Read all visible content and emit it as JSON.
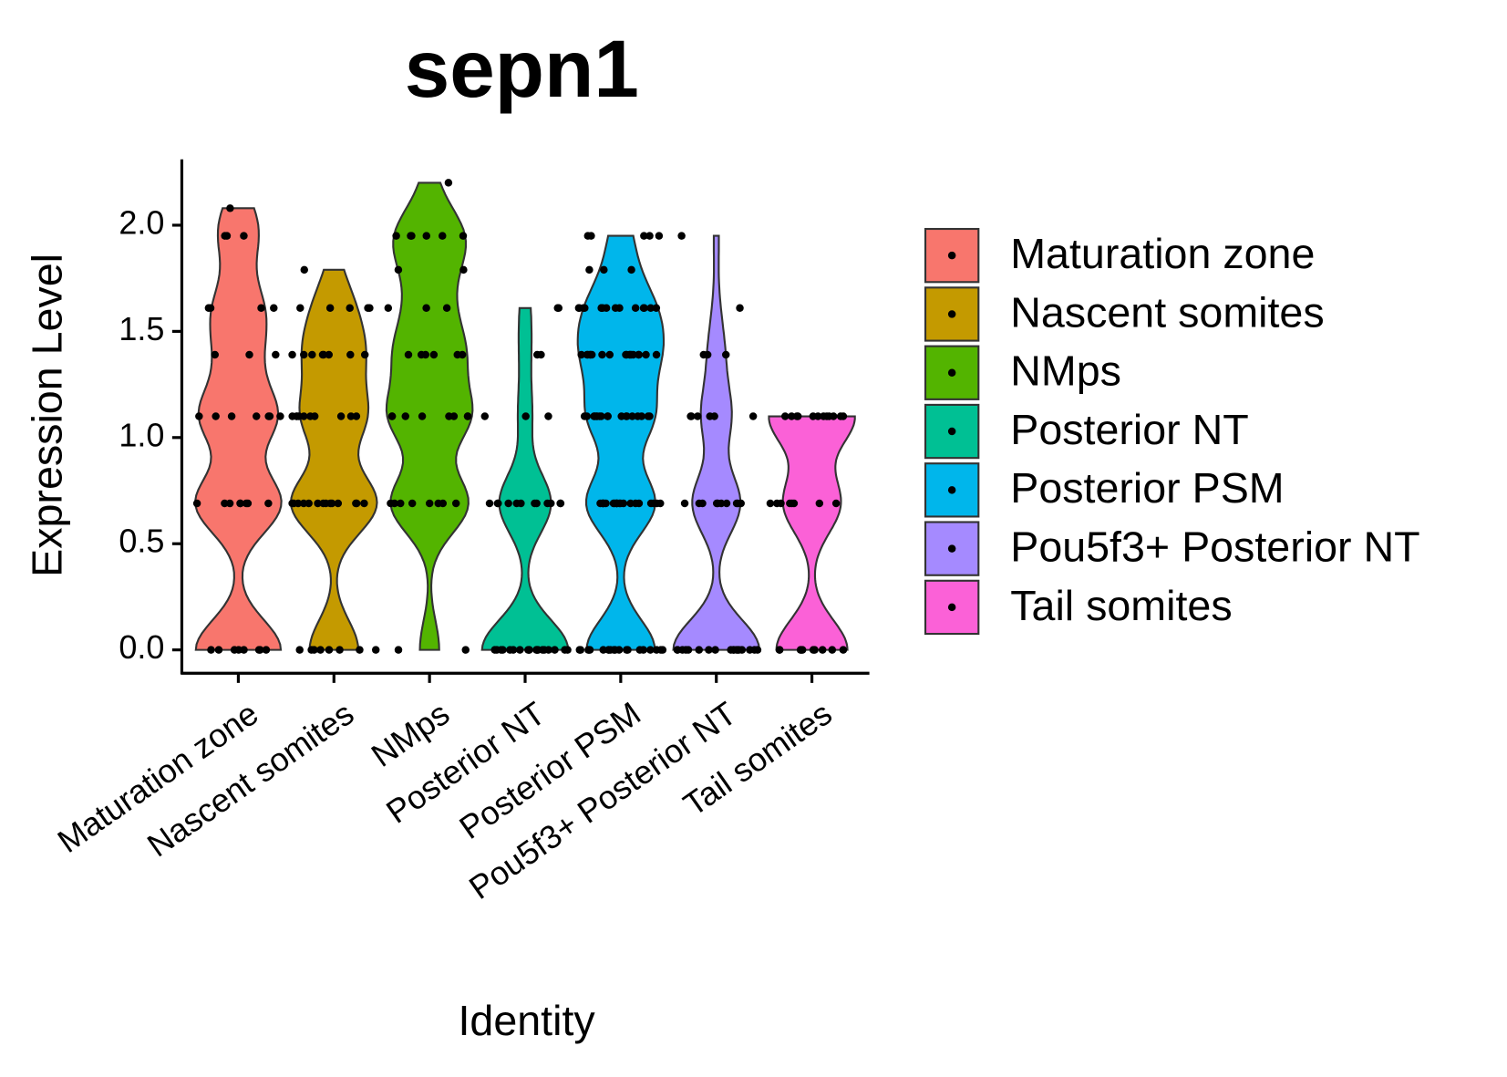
{
  "chart_data": {
    "type": "violin",
    "title": "sepn1",
    "x_label": "Identity",
    "y_label": "Expression Level",
    "categories": [
      "Maturation zone",
      "Nascent somites",
      "NMps",
      "Posterior NT",
      "Posterior PSM",
      "Pou5f3+ Posterior NT",
      "Tail somites"
    ],
    "ylim": [
      -0.11,
      2.31
    ],
    "yticks": [
      {
        "value": 0,
        "label": "0.0"
      },
      0.5,
      {
        "value": 1,
        "label": "1.0"
      },
      1.5,
      {
        "value": 2,
        "label": "2.0"
      }
    ],
    "series": [
      {
        "name": "Maturation zone",
        "color": "#f8766d",
        "values": [
          0,
          0,
          0,
          0,
          0,
          0,
          0,
          0,
          0.69,
          0.69,
          0.69,
          0.69,
          0.69,
          0.69,
          0.69,
          0.69,
          1.1,
          1.1,
          1.1,
          1.1,
          1.1,
          1.1,
          1.1,
          1.39,
          1.39,
          1.39,
          1.61,
          1.61,
          1.61,
          1.61,
          1.95,
          1.95,
          1.95,
          2.08
        ]
      },
      {
        "name": "Nascent somites",
        "color": "#c49a00",
        "values": [
          0,
          0,
          0,
          0,
          0,
          0,
          0,
          0,
          0.69,
          0.69,
          0.69,
          0.69,
          0.69,
          0.69,
          0.69,
          0.69,
          0.69,
          0.69,
          0.69,
          0.69,
          0.69,
          0.69,
          1.1,
          1.1,
          1.1,
          1.1,
          1.1,
          1.1,
          1.1,
          1.1,
          1.1,
          1.1,
          1.39,
          1.39,
          1.39,
          1.39,
          1.39,
          1.39,
          1.39,
          1.39,
          1.61,
          1.61,
          1.61,
          1.61,
          1.61,
          1.79
        ]
      },
      {
        "name": "NMps",
        "color": "#53b400",
        "values": [
          0,
          0,
          0.69,
          0.69,
          0.69,
          0.69,
          0.69,
          0.69,
          0.69,
          0.69,
          1.1,
          1.1,
          1.1,
          1.1,
          1.1,
          1.1,
          1.1,
          1.1,
          1.39,
          1.39,
          1.39,
          1.39,
          1.39,
          1.39,
          1.61,
          1.61,
          1.61,
          1.79,
          1.79,
          1.95,
          1.95,
          1.95,
          1.95,
          1.95,
          1.95,
          2.2
        ]
      },
      {
        "name": "Posterior NT",
        "color": "#00c094",
        "values": [
          0,
          0,
          0,
          0,
          0,
          0,
          0,
          0,
          0,
          0,
          0,
          0,
          0,
          0,
          0,
          0,
          0,
          0,
          0,
          0,
          0.69,
          0.69,
          0.69,
          0.69,
          0.69,
          0.69,
          0.69,
          0.69,
          0.69,
          0.69,
          0.69,
          0.69,
          1.1,
          1.1,
          1.1,
          1.39,
          1.39,
          1.61,
          1.61
        ]
      },
      {
        "name": "Posterior PSM",
        "color": "#00b6eb",
        "values": [
          0,
          0,
          0,
          0,
          0,
          0,
          0,
          0,
          0,
          0,
          0,
          0,
          0,
          0,
          0,
          0,
          0,
          0,
          0,
          0,
          0.69,
          0.69,
          0.69,
          0.69,
          0.69,
          0.69,
          0.69,
          0.69,
          0.69,
          0.69,
          0.69,
          0.69,
          0.69,
          0.69,
          0.69,
          0.69,
          0.69,
          0.69,
          0.69,
          0.69,
          1.1,
          1.1,
          1.1,
          1.1,
          1.1,
          1.1,
          1.1,
          1.1,
          1.1,
          1.1,
          1.1,
          1.1,
          1.1,
          1.1,
          1.1,
          1.1,
          1.1,
          1.1,
          1.39,
          1.39,
          1.39,
          1.39,
          1.39,
          1.39,
          1.39,
          1.39,
          1.39,
          1.39,
          1.39,
          1.39,
          1.39,
          1.39,
          1.39,
          1.39,
          1.39,
          1.39,
          1.61,
          1.61,
          1.61,
          1.61,
          1.61,
          1.61,
          1.61,
          1.61,
          1.61,
          1.61,
          1.61,
          1.61,
          1.61,
          1.61,
          1.61,
          1.79,
          1.79,
          1.79,
          1.95,
          1.95,
          1.95,
          1.95,
          1.95
        ]
      },
      {
        "name": "Pou5f3+ Posterior NT",
        "color": "#a58aff",
        "values": [
          0,
          0,
          0,
          0,
          0,
          0,
          0,
          0,
          0,
          0,
          0,
          0,
          0,
          0,
          0,
          0,
          0,
          0,
          0.69,
          0.69,
          0.69,
          0.69,
          0.69,
          0.69,
          0.69,
          0.69,
          0.69,
          0.69,
          1.1,
          1.1,
          1.1,
          1.1,
          1.1,
          1.1,
          1.39,
          1.39,
          1.39,
          1.61,
          1.95
        ]
      },
      {
        "name": "Tail somites",
        "color": "#fb61d7",
        "values": [
          0,
          0,
          0,
          0,
          0,
          0,
          0,
          0,
          0,
          0,
          0.69,
          0.69,
          0.69,
          0.69,
          0.69,
          0.69,
          0.69,
          0.69,
          1.1,
          1.1,
          1.1,
          1.1,
          1.1,
          1.1,
          1.1,
          1.1,
          1.1,
          1.1,
          1.1,
          1.1
        ]
      }
    ]
  }
}
